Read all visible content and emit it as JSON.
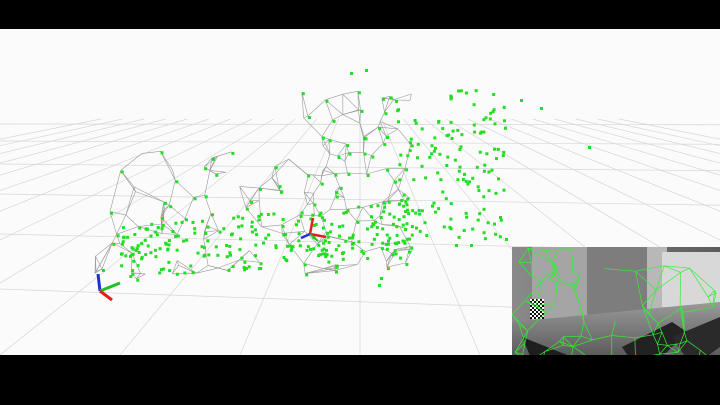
{
  "window": {
    "title": ""
  },
  "scene": {
    "background_color": "#fbfbfb",
    "grid_color": "#d6d6d6",
    "mesh_color": "#9a9a9a",
    "point_color": "#22dd22",
    "axis_colors": {
      "x": "#e02020",
      "y": "#20c020",
      "z": "#2030d0"
    },
    "world_axes_icon": "xyz-axes-icon",
    "camera_axes_icon": "camera-pose-icon"
  },
  "inset": {
    "description_icon": "camera-feed-icon",
    "overlay_color": "#33ee33",
    "checker_icon": "checkerboard-icon"
  }
}
